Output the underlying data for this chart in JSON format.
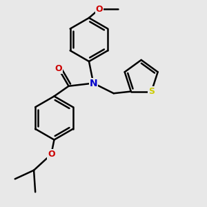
{
  "background_color": "#e8e8e8",
  "bond_color": "#000000",
  "N_color": "#0000cc",
  "O_color": "#cc0000",
  "S_color": "#cccc00",
  "bond_width": 1.8,
  "figsize": [
    3.0,
    3.0
  ],
  "dpi": 100,
  "xlim": [
    -2.5,
    4.5
  ],
  "ylim": [
    -3.5,
    3.5
  ]
}
